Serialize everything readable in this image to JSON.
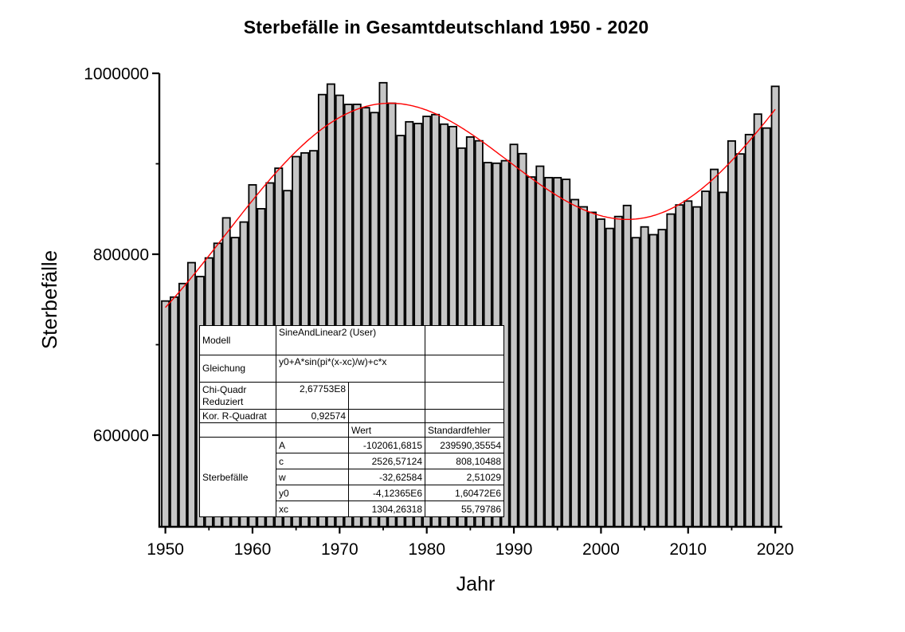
{
  "chart": {
    "title": "Sterbefälle in Gesamtdeutschland 1950 - 2020",
    "xlabel": "Jahr",
    "ylabel": "Sterbefälle"
  },
  "chart_data": {
    "type": "bar",
    "title": "Sterbefälle in Gesamtdeutschland 1950 - 2020",
    "xlabel": "Jahr",
    "ylabel": "Sterbefälle",
    "ylim": [
      500000,
      1000000
    ],
    "xlim": [
      1949.3,
      2020.8
    ],
    "grid": false,
    "legend": "none",
    "bar_color": "#C6C6C6",
    "bar_edge_color": "#000000",
    "fit_curve_color": "#FF0000",
    "axis_color": "#000000",
    "y_ticks_major": [
      1000000,
      800000,
      600000
    ],
    "y_ticks_minor": [
      900000,
      700000
    ],
    "x_ticks_major": [
      1950,
      1960,
      1970,
      1980,
      1990,
      2000,
      2010,
      2020
    ],
    "x_ticks_minor": [
      1955,
      1965,
      1975,
      1985,
      1995,
      2005,
      2015
    ],
    "years": [
      1950,
      1951,
      1952,
      1953,
      1954,
      1955,
      1956,
      1957,
      1958,
      1959,
      1960,
      1961,
      1962,
      1963,
      1964,
      1965,
      1966,
      1967,
      1968,
      1969,
      1970,
      1971,
      1972,
      1973,
      1974,
      1975,
      1976,
      1977,
      1978,
      1979,
      1980,
      1981,
      1982,
      1983,
      1984,
      1985,
      1986,
      1987,
      1988,
      1989,
      1990,
      1991,
      1992,
      1993,
      1994,
      1995,
      1996,
      1997,
      1998,
      1999,
      2000,
      2001,
      2002,
      2003,
      2004,
      2005,
      2006,
      2007,
      2008,
      2009,
      2010,
      2011,
      2012,
      2013,
      2014,
      2015,
      2016,
      2017,
      2018,
      2019,
      2020
    ],
    "values": [
      748300,
      752600,
      767600,
      790700,
      775300,
      795900,
      812100,
      840200,
      818400,
      835600,
      876700,
      850300,
      878800,
      895100,
      870300,
      907900,
      912000,
      914400,
      976500,
      988100,
      975700,
      965600,
      965700,
      962000,
      956600,
      989600,
      966900,
      931200,
      946400,
      944500,
      952400,
      954400,
      943800,
      941100,
      917300,
      929600,
      925400,
      901300,
      900600,
      903400,
      921400,
      911200,
      885400,
      897300,
      884700,
      884600,
      882800,
      860400,
      852400,
      846300,
      838800,
      828500,
      841700,
      853900,
      818300,
      830200,
      821600,
      827200,
      844400,
      854500,
      858800,
      852300,
      869600,
      893800,
      868400,
      925200,
      910900,
      932300,
      954900,
      939500,
      985600
    ],
    "fit": {
      "model": "SineAndLinear2",
      "equation": "y0+A*sin(pi*(x-xc)/w)+c*x",
      "A": -102061.6815,
      "c": 2526.57124,
      "w": -32.62584,
      "y0": -4123650,
      "xc": 1304.26318
    }
  },
  "results_table": {
    "model_label": "Modell",
    "model_value": "SineAndLinear2 (User)",
    "equation_label": "Gleichung",
    "equation_value": "y0+A*sin(pi*(x-xc)/w)+c*x",
    "chisq_label": "Chi-Quadr Reduziert",
    "chisq_value": "2,67753E8",
    "rsq_label": "Kor. R-Quadrat",
    "rsq_value": "0,92574",
    "col_value_header": "Wert",
    "col_stderr_header": "Standardfehler",
    "series_label": "Sterbefälle",
    "params": [
      {
        "name": "A",
        "value": "-102061,6815",
        "stderr": "239590,35554"
      },
      {
        "name": "c",
        "value": "2526,57124",
        "stderr": "808,10488"
      },
      {
        "name": "w",
        "value": "-32,62584",
        "stderr": "2,51029"
      },
      {
        "name": "y0",
        "value": "-4,12365E6",
        "stderr": "1,60472E6"
      },
      {
        "name": "xc",
        "value": "1304,26318",
        "stderr": "55,79786"
      }
    ]
  }
}
